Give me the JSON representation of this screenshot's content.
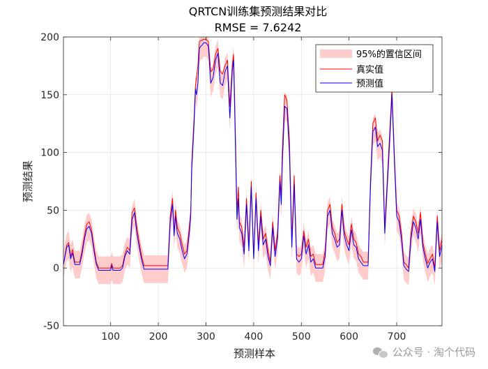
{
  "chart_data": {
    "type": "line",
    "title_line1": "QRTCN训练集预测结果对比",
    "title_line2": "RMSE = 7.6242",
    "xlabel": "预测样本",
    "ylabel": "预测结果",
    "xlim": [
      1,
      795
    ],
    "ylim": [
      -50,
      200
    ],
    "xticks": [
      100,
      200,
      300,
      400,
      500,
      600,
      700
    ],
    "yticks": [
      -50,
      0,
      50,
      100,
      150,
      200
    ],
    "grid": true,
    "legend_position": "top-right",
    "legend": [
      {
        "label": "95%的置信区间",
        "color": "#ffcccc",
        "kind": "area"
      },
      {
        "label": "真实值",
        "color": "#ff0000",
        "kind": "line"
      },
      {
        "label": "预测值",
        "color": "#0000ff",
        "kind": "line"
      }
    ],
    "series": [
      {
        "name": "真实值",
        "color": "#ff0000",
        "x": [
          1,
          8,
          12,
          16,
          20,
          25,
          30,
          35,
          40,
          45,
          50,
          55,
          60,
          65,
          70,
          75,
          80,
          90,
          100,
          102,
          105,
          110,
          120,
          125,
          130,
          135,
          140,
          145,
          150,
          155,
          160,
          165,
          170,
          175,
          180,
          190,
          200,
          210,
          215,
          220,
          225,
          230,
          233,
          236,
          240,
          245,
          250,
          255,
          260,
          265,
          268,
          270,
          275,
          278,
          280,
          283,
          286,
          289,
          292,
          295,
          300,
          305,
          310,
          315,
          320,
          325,
          330,
          335,
          340,
          345,
          350,
          355,
          358,
          360,
          365,
          368,
          370,
          375,
          380,
          385,
          390,
          395,
          400,
          405,
          410,
          415,
          420,
          425,
          430,
          435,
          440,
          445,
          450,
          455,
          458,
          460,
          465,
          470,
          475,
          480,
          485,
          490,
          495,
          500,
          505,
          510,
          515,
          520,
          525,
          530,
          535,
          540,
          545,
          550,
          555,
          560,
          565,
          570,
          575,
          580,
          585,
          590,
          595,
          600,
          605,
          610,
          615,
          620,
          625,
          630,
          635,
          640,
          645,
          650,
          655,
          660,
          665,
          670,
          675,
          680,
          685,
          690,
          695,
          700,
          705,
          710,
          715,
          720,
          725,
          730,
          735,
          740,
          745,
          750,
          755,
          760,
          765,
          770,
          775,
          780,
          785,
          790,
          795
        ],
        "y": [
          3,
          20,
          22,
          10,
          16,
          5,
          5,
          5,
          15,
          28,
          38,
          40,
          33,
          18,
          5,
          0,
          0,
          0,
          0,
          4,
          0,
          0,
          0,
          2,
          12,
          18,
          15,
          48,
          52,
          35,
          22,
          10,
          2,
          2,
          2,
          2,
          2,
          2,
          2,
          2,
          45,
          60,
          30,
          50,
          35,
          30,
          20,
          12,
          15,
          35,
          48,
          90,
          130,
          158,
          165,
          175,
          196,
          197,
          197,
          198,
          198,
          196,
          170,
          172,
          185,
          190,
          170,
          168,
          175,
          180,
          140,
          175,
          185,
          150,
          50,
          70,
          40,
          35,
          18,
          60,
          20,
          75,
          10,
          65,
          20,
          50,
          25,
          30,
          15,
          5,
          40,
          15,
          30,
          80,
          62,
          100,
          150,
          145,
          110,
          25,
          80,
          12,
          10,
          12,
          32,
          18,
          25,
          10,
          12,
          3,
          3,
          3,
          3,
          15,
          50,
          55,
          35,
          30,
          22,
          25,
          55,
          32,
          25,
          20,
          38,
          25,
          22,
          12,
          10,
          5,
          5,
          5,
          75,
          125,
          130,
          110,
          115,
          110,
          35,
          75,
          115,
          155,
          100,
          50,
          45,
          30,
          5,
          3,
          0,
          30,
          45,
          40,
          30,
          48,
          22,
          12,
          4,
          8,
          12,
          0,
          45,
          15,
          25
        ]
      },
      {
        "name": "预测值",
        "color": "#0000ff",
        "x": [
          1,
          8,
          12,
          16,
          20,
          25,
          30,
          35,
          40,
          45,
          50,
          55,
          60,
          65,
          70,
          75,
          80,
          90,
          100,
          102,
          105,
          110,
          120,
          125,
          130,
          135,
          140,
          145,
          150,
          155,
          160,
          165,
          170,
          175,
          180,
          190,
          200,
          210,
          215,
          220,
          225,
          230,
          233,
          236,
          240,
          245,
          250,
          255,
          260,
          265,
          268,
          270,
          275,
          278,
          280,
          283,
          286,
          289,
          292,
          295,
          300,
          305,
          310,
          315,
          320,
          325,
          330,
          335,
          340,
          345,
          350,
          355,
          358,
          360,
          365,
          368,
          370,
          375,
          380,
          385,
          390,
          395,
          400,
          405,
          410,
          415,
          420,
          425,
          430,
          435,
          440,
          445,
          450,
          455,
          458,
          460,
          465,
          470,
          475,
          480,
          485,
          490,
          495,
          500,
          505,
          510,
          515,
          520,
          525,
          530,
          535,
          540,
          545,
          550,
          555,
          560,
          565,
          570,
          575,
          580,
          585,
          590,
          595,
          600,
          605,
          610,
          615,
          620,
          625,
          630,
          635,
          640,
          645,
          650,
          655,
          660,
          665,
          670,
          675,
          680,
          685,
          690,
          695,
          700,
          705,
          710,
          715,
          720,
          725,
          730,
          735,
          740,
          745,
          750,
          755,
          760,
          765,
          770,
          775,
          780,
          785,
          790,
          795
        ],
        "y": [
          3,
          18,
          20,
          8,
          13,
          3,
          3,
          3,
          12,
          25,
          34,
          36,
          30,
          15,
          3,
          -2,
          -2,
          -2,
          -2,
          2,
          -2,
          -2,
          -2,
          0,
          10,
          15,
          12,
          42,
          48,
          30,
          18,
          7,
          -1,
          -1,
          -1,
          -1,
          -1,
          -1,
          -1,
          -1,
          40,
          55,
          28,
          45,
          30,
          25,
          15,
          8,
          12,
          30,
          45,
          85,
          125,
          155,
          150,
          160,
          190,
          192,
          193,
          195,
          195,
          192,
          160,
          165,
          180,
          186,
          160,
          158,
          170,
          175,
          130,
          170,
          180,
          140,
          42,
          60,
          35,
          30,
          12,
          55,
          15,
          70,
          8,
          60,
          15,
          45,
          20,
          25,
          10,
          2,
          35,
          10,
          25,
          75,
          55,
          90,
          140,
          138,
          100,
          18,
          72,
          8,
          5,
          8,
          28,
          12,
          20,
          5,
          8,
          0,
          0,
          0,
          0,
          10,
          45,
          50,
          30,
          25,
          18,
          20,
          50,
          28,
          20,
          15,
          33,
          20,
          18,
          8,
          5,
          2,
          2,
          2,
          70,
          118,
          122,
          105,
          108,
          102,
          30,
          70,
          108,
          150,
          95,
          45,
          40,
          25,
          2,
          -1,
          -3,
          25,
          40,
          35,
          25,
          42,
          18,
          8,
          0,
          5,
          8,
          -3,
          40,
          10,
          20
        ]
      }
    ],
    "confidence_band_halfwidth": 12
  }
}
